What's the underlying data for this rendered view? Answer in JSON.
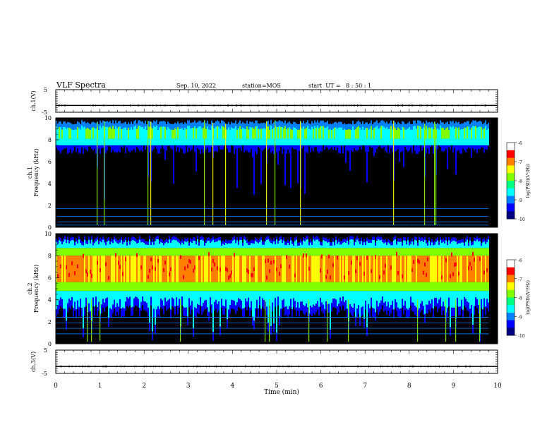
{
  "header": {
    "title": "VLF Spectra",
    "date": "Sep. 10, 2022",
    "station": "station=MOS",
    "start_ut": "start  UT =   8 : 50 : 1"
  },
  "colors": {
    "background": "#ffffff",
    "panel_fill": "#000000",
    "colormap": [
      "#000080",
      "#0000ff",
      "#0080ff",
      "#00ffff",
      "#00ff80",
      "#80ff00",
      "#ffff00",
      "#ff8000",
      "#ff0000",
      "#ffffff"
    ]
  },
  "chart_data": [
    {
      "type": "line",
      "name": "ch1-waveform",
      "ylabel": "ch.1(V)",
      "ylim": [
        -5,
        5
      ],
      "yticks": [
        {
          "value": 5,
          "label": "5"
        },
        {
          "value": -5,
          "label": "-5"
        }
      ],
      "x": [
        0,
        10
      ],
      "y": [
        -2,
        -2
      ],
      "xlim": [
        0,
        10
      ]
    },
    {
      "type": "heatmap",
      "name": "ch1-spectrogram",
      "ylabel": "ch.1\nFrequency (kHz)",
      "ylim": [
        0,
        10
      ],
      "yticks": [
        0,
        2,
        4,
        6,
        8,
        10
      ],
      "xlim": [
        0,
        9.8
      ],
      "colorbar": {
        "label": "log(PSD)(V²/Hz)",
        "range": [
          -10,
          -6
        ],
        "ticks": [
          "-6",
          "-7",
          "-8",
          "-9",
          "-10"
        ]
      },
      "features": {
        "emission_band_khz": [
          7.5,
          9.6
        ],
        "peak_band_khz": 8.6,
        "horizontal_lines_khz": [
          0.2,
          0.5,
          1.0,
          1.7
        ]
      }
    },
    {
      "type": "heatmap",
      "name": "ch2-spectrogram",
      "ylabel": "ch.2\nFrequency (kHz)",
      "ylim": [
        0,
        10
      ],
      "yticks": [
        0,
        2,
        4,
        6,
        8,
        10
      ],
      "xlim": [
        0,
        9.8
      ],
      "colorbar": {
        "label": "log(PSD)(V²/Hz)",
        "range": [
          -10,
          -6
        ],
        "ticks": [
          "-6",
          "-7",
          "-8",
          "-9",
          "-10"
        ]
      },
      "features": {
        "emission_band_khz": [
          3.5,
          9.5
        ],
        "peak_band_khz": [
          5.8,
          7.8
        ],
        "horizontal_lines_khz": [
          0.9,
          1.4,
          1.9,
          2.4
        ]
      }
    },
    {
      "type": "line",
      "name": "ch3-waveform",
      "ylabel": "ch.3(V)",
      "ylim": [
        -5,
        5
      ],
      "yticks": [
        {
          "value": 5,
          "label": "5"
        },
        {
          "value": -5,
          "label": "-5"
        }
      ],
      "x": [
        0,
        10
      ],
      "y": [
        -2,
        -2
      ],
      "xlim": [
        0,
        10
      ],
      "xlabel": "Time  (min)",
      "xticks": [
        {
          "value": 0,
          "label": "0"
        },
        {
          "value": 1,
          "label": "1"
        },
        {
          "value": 2,
          "label": "2"
        },
        {
          "value": 3,
          "label": "3"
        },
        {
          "value": 4,
          "label": "4"
        },
        {
          "value": 5,
          "label": "5"
        },
        {
          "value": 6,
          "label": "6"
        },
        {
          "value": 7,
          "label": "7"
        },
        {
          "value": 8,
          "label": "8"
        },
        {
          "value": 9,
          "label": "9"
        },
        {
          "value": 10,
          "label": "10"
        }
      ]
    }
  ]
}
